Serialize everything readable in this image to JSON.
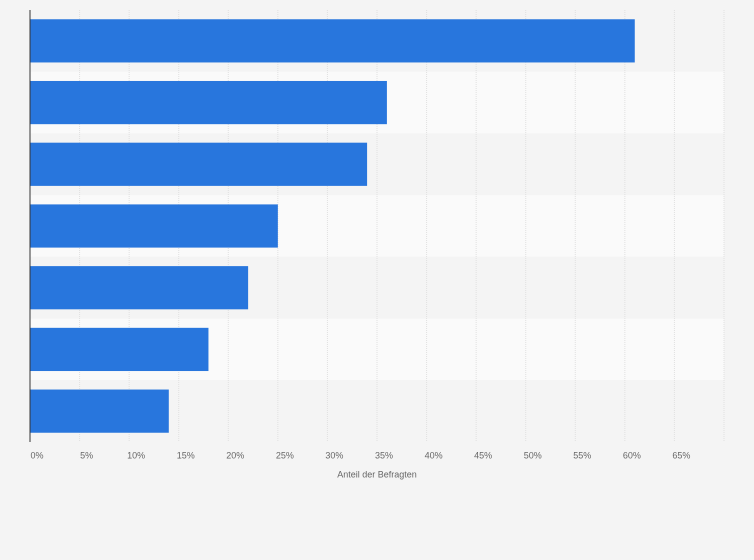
{
  "chart_data": {
    "type": "bar",
    "orientation": "horizontal",
    "categories": [
      null,
      null,
      null,
      null,
      null,
      null,
      null
    ],
    "values": [
      61,
      36,
      34,
      25,
      22,
      18,
      14
    ],
    "color": "#2876dd",
    "xlabel": "Anteil der Befragten",
    "xlim": [
      0,
      70
    ],
    "xticks": [
      {
        "value": 0,
        "label": "0%"
      },
      {
        "value": 5,
        "label": "5%"
      },
      {
        "value": 10,
        "label": "10%"
      },
      {
        "value": 15,
        "label": "15%"
      },
      {
        "value": 20,
        "label": "20%"
      },
      {
        "value": 25,
        "label": "25%"
      },
      {
        "value": 30,
        "label": "30%"
      },
      {
        "value": 35,
        "label": "35%"
      },
      {
        "value": 40,
        "label": "40%"
      },
      {
        "value": 45,
        "label": "45%"
      },
      {
        "value": 50,
        "label": "50%"
      },
      {
        "value": 55,
        "label": "55%"
      },
      {
        "value": 60,
        "label": "60%"
      },
      {
        "value": 65,
        "label": "65%"
      }
    ],
    "grid": true
  }
}
